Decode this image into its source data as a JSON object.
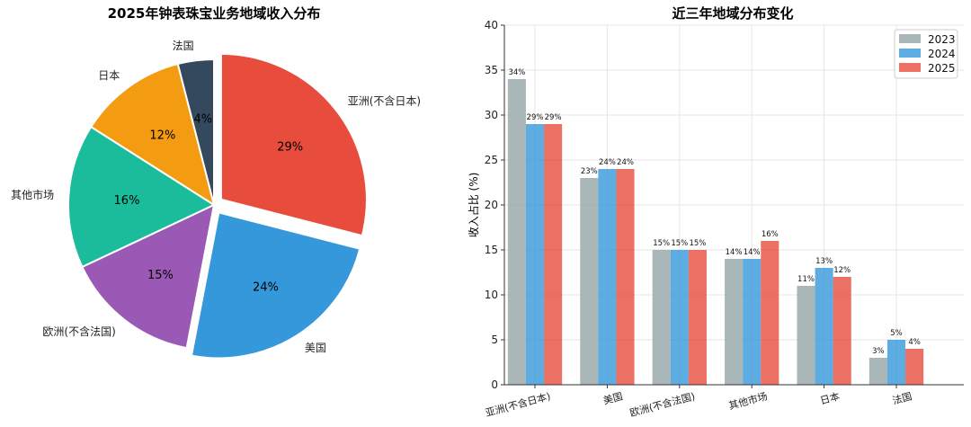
{
  "chart_data": [
    {
      "type": "pie",
      "title": "2025年钟表珠宝业务地域收入分布",
      "slices": [
        {
          "label": "法国",
          "value": 4,
          "pct_label": "4%",
          "color": "#34495e",
          "explode": false
        },
        {
          "label": "日本",
          "value": 12,
          "pct_label": "12%",
          "color": "#f39c12",
          "explode": false
        },
        {
          "label": "其他市场",
          "value": 16,
          "pct_label": "16%",
          "color": "#1abc9c",
          "explode": false
        },
        {
          "label": "欧洲(不含法国)",
          "value": 15,
          "pct_label": "15%",
          "color": "#9b59b6",
          "explode": false
        },
        {
          "label": "美国",
          "value": 24,
          "pct_label": "24%",
          "color": "#3498db",
          "explode": true
        },
        {
          "label": "亚洲(不含日本)",
          "value": 29,
          "pct_label": "29%",
          "color": "#e74c3c",
          "explode": true
        }
      ]
    },
    {
      "type": "bar",
      "title": "近三年地域分布变化",
      "xlabel": "",
      "ylabel": "收入占比 (%)",
      "ylim": [
        0,
        40
      ],
      "yticks": [
        0,
        5,
        10,
        15,
        20,
        25,
        30,
        35,
        40
      ],
      "grid": true,
      "legend_position": "top-right",
      "categories": [
        "亚洲(不含日本)",
        "美国",
        "欧洲(不含法国)",
        "其他市场",
        "日本",
        "法国"
      ],
      "series": [
        {
          "name": "2023",
          "color": "#95a5a6",
          "values": [
            34,
            23,
            15,
            14,
            11,
            3
          ],
          "labels": [
            "34%",
            "23%",
            "15%",
            "14%",
            "11%",
            "3%"
          ]
        },
        {
          "name": "2024",
          "color": "#3498db",
          "values": [
            29,
            24,
            15,
            14,
            13,
            5
          ],
          "labels": [
            "29%",
            "24%",
            "15%",
            "14%",
            "13%",
            "5%"
          ]
        },
        {
          "name": "2025",
          "color": "#e74c3c",
          "values": [
            29,
            24,
            15,
            16,
            12,
            4
          ],
          "labels": [
            "29%",
            "24%",
            "15%",
            "16%",
            "12%",
            "4%"
          ]
        }
      ]
    }
  ]
}
